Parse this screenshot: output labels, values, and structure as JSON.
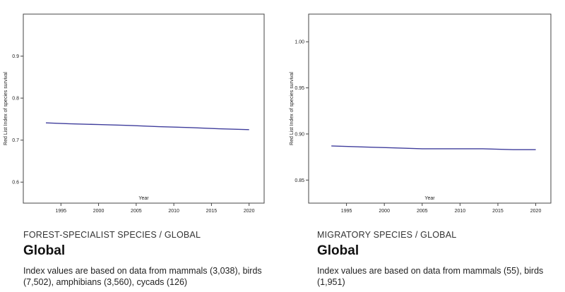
{
  "panels": [
    {
      "subheading": "FOREST-SPECIALIST SPECIES / GLOBAL",
      "title": "Global",
      "note": "Index values are based on data from mammals (3,038), birds (7,502), amphibians (3,560), cycads (126)"
    },
    {
      "subheading": "MIGRATORY SPECIES / GLOBAL",
      "title": "Global",
      "note": "Index values are based on data from mammals (55), birds (1,951)"
    }
  ],
  "chart_data": [
    {
      "type": "line",
      "xlabel": "Year",
      "ylabel": "Red List Index of species survival",
      "xlim": [
        1990,
        2022
      ],
      "ylim": [
        0.55,
        1.0
      ],
      "xticks": [
        1995,
        2000,
        2005,
        2010,
        2015,
        2020
      ],
      "yticks": [
        0.6,
        0.7,
        0.8,
        0.9
      ],
      "ytick_labels": [
        "0.6",
        "0.7",
        "0.8",
        "0.9"
      ],
      "grid": false,
      "series": [
        {
          "color": "#3f3d9c",
          "x": [
            1993,
            1996,
            2000,
            2004,
            2008,
            2012,
            2016,
            2020
          ],
          "y": [
            0.741,
            0.739,
            0.737,
            0.735,
            0.732,
            0.73,
            0.727,
            0.725
          ]
        }
      ]
    },
    {
      "type": "line",
      "xlabel": "Year",
      "ylabel": "Red List Index of species survival",
      "xlim": [
        1990,
        2022
      ],
      "ylim": [
        0.825,
        1.03
      ],
      "xticks": [
        1995,
        2000,
        2005,
        2010,
        2015,
        2020
      ],
      "yticks": [
        0.85,
        0.9,
        0.95,
        1.0
      ],
      "ytick_labels": [
        "0.85",
        "0.90",
        "0.95",
        "1.00"
      ],
      "grid": false,
      "series": [
        {
          "color": "#3f3d9c",
          "x": [
            1993,
            1997,
            2001,
            2005,
            2009,
            2013,
            2017,
            2020
          ],
          "y": [
            0.887,
            0.886,
            0.885,
            0.884,
            0.884,
            0.884,
            0.883,
            0.883
          ]
        }
      ]
    }
  ]
}
